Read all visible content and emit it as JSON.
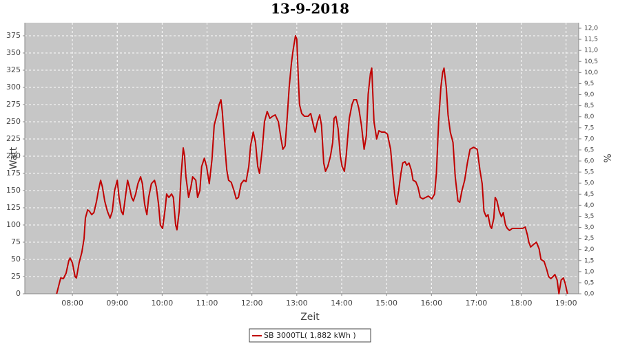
{
  "chart_data": {
    "type": "line",
    "title": "13-9-2018",
    "x_label": "Zeit",
    "y_label": "Watt",
    "y2_label": "%",
    "xlim": [
      6.94,
      19.28
    ],
    "ylim": [
      0,
      394
    ],
    "y2lim": [
      0,
      12.25
    ],
    "xticks": [
      {
        "value": 8,
        "label": "08:00"
      },
      {
        "value": 9,
        "label": "09:00"
      },
      {
        "value": 10,
        "label": "10:00"
      },
      {
        "value": 11,
        "label": "11:00"
      },
      {
        "value": 12,
        "label": "12:00"
      },
      {
        "value": 13,
        "label": "13:00"
      },
      {
        "value": 14,
        "label": "14:00"
      },
      {
        "value": 15,
        "label": "15:00"
      },
      {
        "value": 16,
        "label": "16:00"
      },
      {
        "value": 17,
        "label": "17:00"
      },
      {
        "value": 18,
        "label": "18:00"
      },
      {
        "value": 19,
        "label": "19:00"
      }
    ],
    "yticks": [
      0,
      25,
      50,
      75,
      100,
      125,
      150,
      175,
      200,
      225,
      250,
      275,
      300,
      325,
      350,
      375
    ],
    "y2ticks": [
      {
        "value": 0,
        "label": "0,0"
      },
      {
        "value": 0.5,
        "label": "0,5"
      },
      {
        "value": 1,
        "label": "1,0"
      },
      {
        "value": 1.5,
        "label": "1,5"
      },
      {
        "value": 2,
        "label": "2,0"
      },
      {
        "value": 2.5,
        "label": "2,5"
      },
      {
        "value": 3,
        "label": "3,0"
      },
      {
        "value": 3.5,
        "label": "3,5"
      },
      {
        "value": 4,
        "label": "4,0"
      },
      {
        "value": 4.5,
        "label": "4,5"
      },
      {
        "value": 5,
        "label": "5,0"
      },
      {
        "value": 5.5,
        "label": "5,5"
      },
      {
        "value": 6,
        "label": "6,0"
      },
      {
        "value": 6.5,
        "label": "6,5"
      },
      {
        "value": 7,
        "label": "7,0"
      },
      {
        "value": 7.5,
        "label": "7,5"
      },
      {
        "value": 8,
        "label": "8,0"
      },
      {
        "value": 8.5,
        "label": "8,5"
      },
      {
        "value": 9,
        "label": "9,0"
      },
      {
        "value": 9.5,
        "label": "9,5"
      },
      {
        "value": 10,
        "label": "10,0"
      },
      {
        "value": 10.5,
        "label": "10,5"
      },
      {
        "value": 11,
        "label": "11,0"
      },
      {
        "value": 11.5,
        "label": "11,5"
      },
      {
        "value": 12,
        "label": "12,0"
      }
    ],
    "grid": true,
    "legend": "bottom",
    "x": [
      7.65,
      7.74,
      7.8,
      7.86,
      7.92,
      7.95,
      8.0,
      8.06,
      8.09,
      8.15,
      8.21,
      8.26,
      8.29,
      8.34,
      8.38,
      8.43,
      8.48,
      8.54,
      8.58,
      8.63,
      8.67,
      8.72,
      8.78,
      8.84,
      8.89,
      8.94,
      9.0,
      9.04,
      9.09,
      9.13,
      9.18,
      9.23,
      9.27,
      9.32,
      9.36,
      9.41,
      9.46,
      9.52,
      9.56,
      9.61,
      9.66,
      9.7,
      9.76,
      9.83,
      9.87,
      9.92,
      9.96,
      10.01,
      10.07,
      10.1,
      10.15,
      10.21,
      10.25,
      10.3,
      10.33,
      10.38,
      10.42,
      10.47,
      10.5,
      10.53,
      10.59,
      10.64,
      10.68,
      10.75,
      10.79,
      10.84,
      10.88,
      10.94,
      10.99,
      11.05,
      11.11,
      11.16,
      11.22,
      11.27,
      11.31,
      11.34,
      11.39,
      11.44,
      11.48,
      11.54,
      11.6,
      11.65,
      11.7,
      11.76,
      11.82,
      11.87,
      11.93,
      11.97,
      12.03,
      12.08,
      12.13,
      12.17,
      12.23,
      12.28,
      12.34,
      12.4,
      12.46,
      12.52,
      12.59,
      12.65,
      12.69,
      12.74,
      12.79,
      12.83,
      12.88,
      12.92,
      12.97,
      13.0,
      13.03,
      13.06,
      13.11,
      13.17,
      13.25,
      13.31,
      13.37,
      13.41,
      13.46,
      13.51,
      13.55,
      13.6,
      13.64,
      13.69,
      13.75,
      13.8,
      13.83,
      13.87,
      13.92,
      13.97,
      14.01,
      14.06,
      14.1,
      14.17,
      14.23,
      14.27,
      14.33,
      14.38,
      14.44,
      14.5,
      14.55,
      14.59,
      14.64,
      14.67,
      14.72,
      14.78,
      14.83,
      14.89,
      14.96,
      15.02,
      15.09,
      15.13,
      15.18,
      15.22,
      15.27,
      15.32,
      15.36,
      15.41,
      15.45,
      15.5,
      15.55,
      15.59,
      15.65,
      15.7,
      15.75,
      15.81,
      15.87,
      15.93,
      16.01,
      16.07,
      16.11,
      16.16,
      16.21,
      16.25,
      16.28,
      16.33,
      16.37,
      16.42,
      16.48,
      16.53,
      16.59,
      16.63,
      16.68,
      16.74,
      16.8,
      16.86,
      16.94,
      17.02,
      17.08,
      17.13,
      17.17,
      17.22,
      17.26,
      17.31,
      17.34,
      17.39,
      17.42,
      17.46,
      17.51,
      17.56,
      17.6,
      17.65,
      17.69,
      17.74,
      17.8,
      17.89,
      17.97,
      18.03,
      18.09,
      18.14,
      18.17,
      18.21,
      18.28,
      18.34,
      18.4,
      18.44,
      18.51,
      18.57,
      18.61,
      18.66,
      18.71,
      18.75,
      18.8,
      18.84,
      18.89,
      18.94,
      18.98,
      19.03
    ],
    "series": [
      {
        "name": "SB 3000TL( 1,882 kWh )",
        "color": "#c00000",
        "values": [
          0,
          23,
          22,
          30,
          48,
          52,
          45,
          25,
          23,
          45,
          60,
          80,
          110,
          122,
          120,
          115,
          118,
          135,
          150,
          165,
          155,
          135,
          120,
          110,
          120,
          150,
          165,
          140,
          120,
          115,
          140,
          165,
          155,
          140,
          135,
          145,
          160,
          170,
          160,
          130,
          115,
          140,
          160,
          165,
          155,
          130,
          100,
          95,
          125,
          145,
          140,
          145,
          140,
          100,
          93,
          120,
          170,
          212,
          200,
          170,
          140,
          155,
          170,
          165,
          140,
          150,
          185,
          197,
          185,
          160,
          195,
          245,
          260,
          275,
          282,
          265,
          220,
          180,
          165,
          162,
          150,
          138,
          140,
          160,
          165,
          163,
          185,
          215,
          235,
          220,
          185,
          175,
          210,
          250,
          265,
          255,
          258,
          260,
          250,
          225,
          210,
          215,
          260,
          300,
          335,
          355,
          375,
          370,
          320,
          275,
          262,
          258,
          258,
          262,
          245,
          235,
          250,
          260,
          245,
          190,
          178,
          185,
          200,
          220,
          255,
          258,
          240,
          200,
          185,
          178,
          200,
          255,
          275,
          282,
          282,
          270,
          245,
          210,
          230,
          290,
          320,
          328,
          250,
          225,
          237,
          235,
          235,
          232,
          210,
          180,
          145,
          130,
          150,
          175,
          190,
          192,
          187,
          190,
          180,
          165,
          163,
          155,
          140,
          138,
          140,
          142,
          138,
          145,
          175,
          250,
          300,
          322,
          328,
          300,
          260,
          235,
          220,
          170,
          135,
          133,
          150,
          165,
          190,
          210,
          213,
          210,
          180,
          160,
          120,
          112,
          115,
          98,
          95,
          110,
          140,
          135,
          120,
          112,
          118,
          100,
          95,
          92,
          95,
          95,
          95,
          95,
          97,
          85,
          75,
          68,
          72,
          75,
          65,
          50,
          47,
          35,
          25,
          22,
          25,
          28,
          20,
          0,
          20,
          23,
          15,
          0
        ]
      }
    ]
  }
}
